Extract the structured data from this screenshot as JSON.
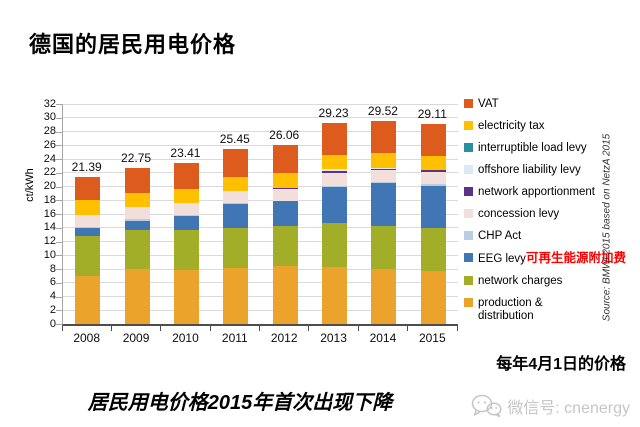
{
  "title": "德国的居民用电价格",
  "chart_data": {
    "type": "bar",
    "stacked": true,
    "title": "德国的居民用电价格",
    "ylabel": "ct/kWh",
    "ylim": [
      0,
      32
    ],
    "ytick_step": 2,
    "grid": true,
    "legend_position": "right",
    "categories": [
      "2008",
      "2009",
      "2010",
      "2011",
      "2012",
      "2013",
      "2014",
      "2015"
    ],
    "totals": [
      21.39,
      22.75,
      23.41,
      25.45,
      26.06,
      29.23,
      29.52,
      29.11
    ],
    "series": [
      {
        "name": "production & distribution",
        "color": "#ECA32C",
        "values": [
          7.0,
          8.0,
          7.9,
          8.2,
          8.5,
          8.35,
          8.0,
          7.7
        ]
      },
      {
        "name": "network charges",
        "color": "#A2AD28",
        "values": [
          5.78,
          5.73,
          5.75,
          5.79,
          5.82,
          6.37,
          6.2,
          6.25
        ]
      },
      {
        "name": "EEG levy",
        "color": "#4176B5",
        "values": [
          1.16,
          1.31,
          2.05,
          3.53,
          3.59,
          5.28,
          6.24,
          6.17
        ]
      },
      {
        "name": "CHP Act",
        "color": "#B9CDE4",
        "values": [
          0.19,
          0.24,
          0.13,
          0.03,
          0.0,
          0.13,
          0.18,
          0.25
        ]
      },
      {
        "name": "concession levy",
        "color": "#F2DEDA",
        "values": [
          1.79,
          1.79,
          1.79,
          1.79,
          1.79,
          1.79,
          1.79,
          1.79
        ]
      },
      {
        "name": "network apportionment",
        "color": "#5B3286",
        "values": [
          0,
          0,
          0,
          0,
          0.15,
          0.33,
          0.09,
          0.24
        ]
      },
      {
        "name": "offshore liability levy",
        "color": "#DCE9F4",
        "values": [
          0,
          0,
          0,
          0,
          0,
          0.25,
          0.25,
          0
        ]
      },
      {
        "name": "interruptible load levy",
        "color": "#2B8FA0",
        "values": [
          0,
          0,
          0,
          0,
          0,
          0.01,
          0.01,
          0.01
        ]
      },
      {
        "name": "electricity tax",
        "color": "#FFC000",
        "values": [
          2.05,
          2.05,
          2.05,
          2.05,
          2.05,
          2.05,
          2.05,
          2.05
        ]
      },
      {
        "name": "VAT",
        "color": "#DD5C1D",
        "values": [
          3.42,
          3.63,
          3.74,
          4.06,
          4.16,
          4.67,
          4.71,
          4.65
        ]
      }
    ],
    "legend": [
      {
        "label": "VAT",
        "color": "#DD5C1D"
      },
      {
        "label": "electricity tax",
        "color": "#FFC000"
      },
      {
        "label": "interruptible load levy",
        "color": "#2B8FA0"
      },
      {
        "label": "offshore liability levy",
        "color": "#DCE9F4"
      },
      {
        "label": "network apportionment",
        "color": "#5B3286"
      },
      {
        "label": "concession levy",
        "color": "#F2DEDA"
      },
      {
        "label": "CHP Act",
        "color": "#B9CDE4"
      },
      {
        "label": "EEG levy",
        "color": "#4176B5",
        "annotation": "可再生能源附加费",
        "annotation_color": "#FF0000"
      },
      {
        "label": "network charges",
        "color": "#A2AD28"
      },
      {
        "label": "production & distribution",
        "color": "#ECA32C"
      }
    ]
  },
  "source_note": "Source: BMWi 2015 based on NetzA 2015",
  "price_date_note": "每年4月1日的价格",
  "caption": "居民用电价格2015年首次出现下降",
  "watermark": {
    "icon": "wechat-icon",
    "label": "微信号: cnenergy"
  }
}
